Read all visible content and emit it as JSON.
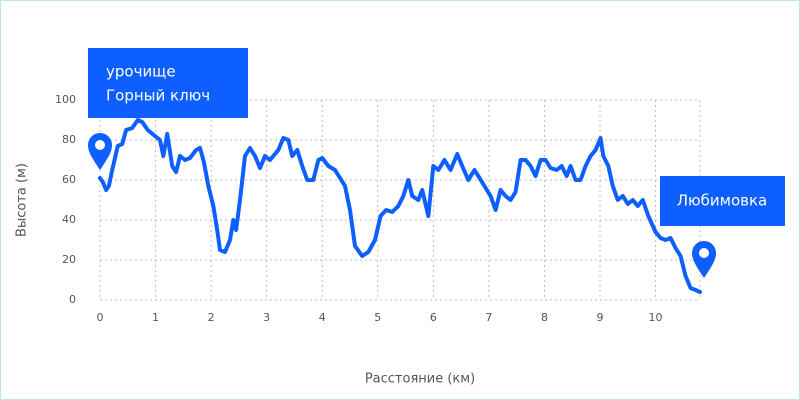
{
  "chart_data": {
    "type": "line",
    "x_label": "Расстояние (км)",
    "y_label": "Высота (м)",
    "start_label": [
      "урочище",
      "Горный ключ"
    ],
    "end_label": "Любимовка",
    "color": "#0d5fff",
    "grid": true,
    "xlim": [
      0,
      10.8
    ],
    "ylim": [
      0,
      100
    ],
    "xticks": [
      0,
      1,
      2,
      3,
      4,
      5,
      6,
      7,
      8,
      9,
      10
    ],
    "yticks": [
      0,
      20,
      40,
      60,
      80,
      100
    ],
    "x": [
      0,
      0.05,
      0.11,
      0.16,
      0.22,
      0.32,
      0.4,
      0.47,
      0.58,
      0.68,
      0.76,
      0.86,
      0.99,
      1.08,
      1.14,
      1.21,
      1.3,
      1.37,
      1.44,
      1.53,
      1.62,
      1.73,
      1.8,
      1.87,
      1.95,
      2.04,
      2.11,
      2.16,
      2.25,
      2.34,
      2.4,
      2.45,
      2.52,
      2.61,
      2.7,
      2.79,
      2.88,
      2.97,
      3.06,
      3.21,
      3.3,
      3.39,
      3.46,
      3.55,
      3.64,
      3.73,
      3.84,
      3.93,
      4.0,
      4.11,
      4.23,
      4.32,
      4.41,
      4.5,
      4.59,
      4.72,
      4.83,
      4.95,
      5.05,
      5.15,
      5.26,
      5.37,
      5.46,
      5.55,
      5.62,
      5.73,
      5.8,
      5.91,
      6.0,
      6.09,
      6.2,
      6.31,
      6.43,
      6.52,
      6.63,
      6.74,
      6.81,
      6.92,
      7.03,
      7.12,
      7.21,
      7.3,
      7.39,
      7.48,
      7.57,
      7.66,
      7.75,
      7.84,
      7.93,
      8.02,
      8.11,
      8.22,
      8.31,
      8.4,
      8.47,
      8.56,
      8.65,
      8.74,
      8.83,
      8.92,
      9.01,
      9.06,
      9.15,
      9.23,
      9.32,
      9.41,
      9.5,
      9.59,
      9.68,
      9.77,
      9.87,
      10.0,
      10.09,
      10.18,
      10.27,
      10.36,
      10.45,
      10.54,
      10.63,
      10.72,
      10.8
    ],
    "values": [
      61,
      59,
      55,
      57,
      65,
      77,
      78,
      85,
      86,
      90,
      89,
      85,
      82,
      80,
      72,
      83,
      67,
      64,
      72,
      70,
      71,
      75,
      76,
      69,
      57,
      47,
      35,
      25,
      24,
      30,
      40,
      35,
      50,
      72,
      76,
      72,
      66,
      72,
      70,
      75,
      81,
      80,
      72,
      75,
      67,
      60,
      60,
      70,
      71,
      67,
      65,
      61,
      57,
      45,
      27,
      22,
      24,
      30,
      42,
      45,
      44,
      47,
      52,
      60,
      52,
      50,
      55,
      42,
      67,
      65,
      70,
      65,
      73,
      67,
      60,
      65,
      62,
      57,
      52,
      45,
      55,
      52,
      50,
      54,
      70,
      70,
      67,
      62,
      70,
      70,
      66,
      65,
      67,
      62,
      67,
      60,
      60,
      67,
      72,
      75,
      81,
      72,
      67,
      57,
      50,
      52,
      48,
      50,
      47,
      50,
      42,
      34,
      31,
      30,
      31,
      26,
      22,
      12,
      6,
      5,
      4
    ]
  }
}
